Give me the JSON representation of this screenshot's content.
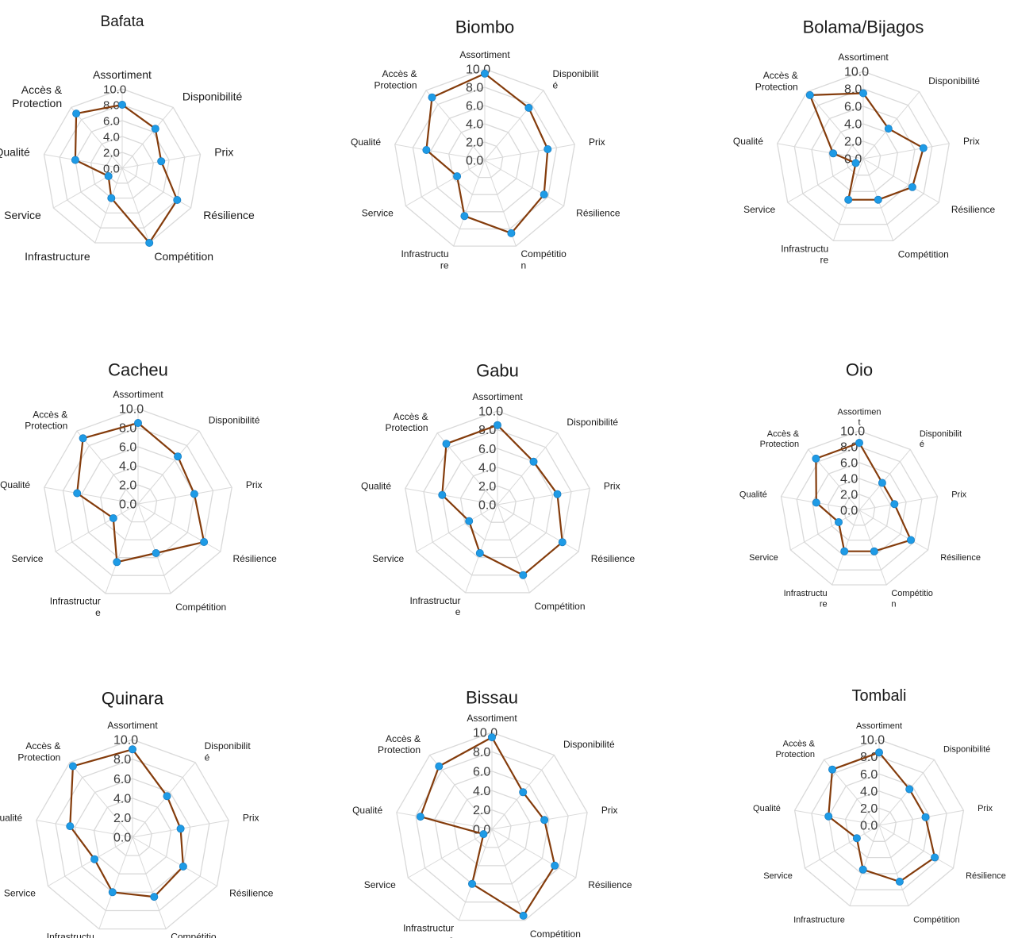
{
  "axis": {
    "ticks": [
      "10.0",
      "8.0",
      "6.0",
      "4.0",
      "2.0",
      "0.0"
    ],
    "range": [
      0,
      10
    ]
  },
  "colors": {
    "line": "#843c0c",
    "marker": "#1e9be6",
    "grid": "#d9d9d9"
  },
  "chart_data": [
    {
      "type": "radar",
      "title": "Bafata",
      "categories": [
        "Assortiment",
        "Disponibilité",
        "Prix",
        "Résilience",
        "Compétition",
        "Infrastructure",
        "Service",
        "Qualité",
        "Accès &\nProtection"
      ],
      "values": [
        8.0,
        6.5,
        5.0,
        8.0,
        10.0,
        4.0,
        2.0,
        6.0,
        9.0
      ],
      "ylim": [
        0,
        10
      ]
    },
    {
      "type": "radar",
      "title": "Biombo",
      "categories": [
        "Assortiment",
        "Disponibilit\né",
        "Prix",
        "Résilience",
        "Compétitio\nn",
        "Infrastructu\nre",
        "Service",
        "Qualité",
        "Accès &\nProtection"
      ],
      "values": [
        9.5,
        7.5,
        7.0,
        7.5,
        8.5,
        6.5,
        3.5,
        6.5,
        9.0
      ],
      "ylim": [
        0,
        10
      ]
    },
    {
      "type": "radar",
      "title": "Bolama/Bijagos",
      "categories": [
        "Assortiment",
        "Disponibilité",
        "Prix",
        "Résilience",
        "Compétition",
        "Infrastructu\nre",
        "Service",
        "Qualité",
        "Accès &\nProtection"
      ],
      "values": [
        7.5,
        4.5,
        7.0,
        6.5,
        5.0,
        5.0,
        1.0,
        3.5,
        9.5
      ],
      "ylim": [
        0,
        10
      ]
    },
    {
      "type": "radar",
      "title": "Cacheu",
      "categories": [
        "Assortiment",
        "Disponibilité",
        "Prix",
        "Résilience",
        "Compétition",
        "Infrastructur\ne",
        "Service",
        "Qualité",
        "Accès &\nProtection"
      ],
      "values": [
        8.5,
        6.5,
        6.0,
        8.0,
        5.5,
        6.5,
        3.0,
        6.5,
        9.0
      ],
      "ylim": [
        0,
        10
      ]
    },
    {
      "type": "radar",
      "title": "Gabu",
      "categories": [
        "Assortiment",
        "Disponibilité",
        "Prix",
        "Résilience",
        "Compétition",
        "Infrastructur\ne",
        "Service",
        "Qualité",
        "Accès &\nProtection"
      ],
      "values": [
        8.5,
        6.0,
        6.5,
        8.0,
        8.0,
        5.5,
        3.5,
        6.0,
        8.5
      ],
      "ylim": [
        0,
        10
      ]
    },
    {
      "type": "radar",
      "title": "Oio",
      "categories": [
        "Assortimen\nt",
        "Disponibilit\né",
        "Prix",
        "Résilience",
        "Compétitio\nn",
        "Infrastructu\nre",
        "Service",
        "Qualité",
        "Accès &\nProtection"
      ],
      "values": [
        8.5,
        4.5,
        4.5,
        7.5,
        5.5,
        5.5,
        3.0,
        5.5,
        8.5
      ],
      "ylim": [
        0,
        10
      ]
    },
    {
      "type": "radar",
      "title": "Quinara",
      "categories": [
        "Assortiment",
        "Disponibilit\né",
        "Prix",
        "Résilience",
        "Compétitio\nn",
        "Infrastructu\nre",
        "Service",
        "Qualité",
        "Accès &\nProtection"
      ],
      "values": [
        9.0,
        5.5,
        5.0,
        6.0,
        6.5,
        6.0,
        4.5,
        6.5,
        9.5
      ],
      "ylim": [
        0,
        10
      ]
    },
    {
      "type": "radar",
      "title": "Bissau",
      "categories": [
        "Assortiment",
        "Disponibilité",
        "Prix",
        "Résilience",
        "Compétition",
        "Infrastructur\ne",
        "Service",
        "Qualité",
        "Accès &\nProtection"
      ],
      "values": [
        9.5,
        5.0,
        5.5,
        7.5,
        9.5,
        6.0,
        1.0,
        7.5,
        8.5
      ],
      "ylim": [
        0,
        10
      ]
    },
    {
      "type": "radar",
      "title": "Tombali",
      "categories": [
        "Assortiment",
        "Disponibilité",
        "Prix",
        "Résilience",
        "Compétition",
        "Infrastructure",
        "Service",
        "Qualité",
        "Accès &\nProtection"
      ],
      "values": [
        8.5,
        5.5,
        5.5,
        7.5,
        7.0,
        5.5,
        3.0,
        6.0,
        8.5
      ],
      "ylim": [
        0,
        10
      ]
    }
  ]
}
